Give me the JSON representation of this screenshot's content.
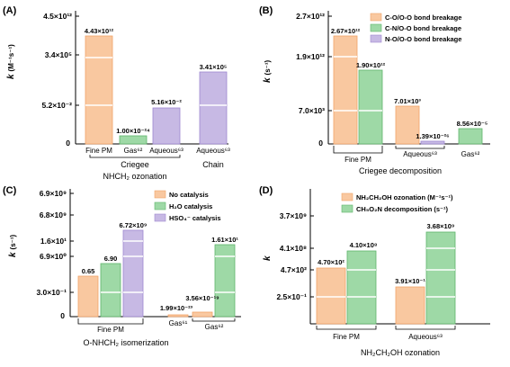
{
  "colors": {
    "orange": "#f9c8a0",
    "orange_stroke": "#f0a368",
    "green": "#9ed9a6",
    "green_stroke": "#5fb56c",
    "purple": "#c7b9e4",
    "purple_stroke": "#9e88cf"
  },
  "chart_data": [
    {
      "panel": "(A)",
      "type": "bar",
      "xlabel": "NHCH2 ozonation",
      "ylabel": "k (M⁻¹s⁻¹)",
      "yscale": "broken",
      "yticks": [
        "0",
        "5.2×10⁻²",
        "3.4×10⁵",
        "4.5×10¹²"
      ],
      "categories": [
        "Fine PM",
        "Gas⁶²",
        "Aqueous⁶³",
        "Aqueous⁶³"
      ],
      "groups": [
        "Criegee",
        "Chain"
      ],
      "series": [
        {
          "category": "Fine PM",
          "group": "Criegee",
          "color": "orange",
          "value_label": "4.43×10¹²",
          "value": 4430000000000.0
        },
        {
          "category": "Gas⁶²",
          "group": "Criegee",
          "color": "green",
          "value_label": "1.00×10⁻²⁴",
          "value": 1e-24
        },
        {
          "category": "Aqueous⁶³",
          "group": "Criegee",
          "color": "purple",
          "value_label": "5.16×10⁻²",
          "value": 0.0516
        },
        {
          "category": "Aqueous⁶³",
          "group": "Chain",
          "color": "purple",
          "value_label": "3.41×10⁵",
          "value": 341000.0
        }
      ]
    },
    {
      "panel": "(B)",
      "type": "bar",
      "xlabel": "Criegee decomposition",
      "ylabel": "k (s⁻¹)",
      "yscale": "broken",
      "yticks": [
        "0",
        "7.0×10³",
        "1.9×10¹²",
        "2.7×10¹²"
      ],
      "categories": [
        "Fine PM",
        "Aqueous⁶³",
        "Gas⁶²"
      ],
      "legend": [
        "C-O/O-O bond breakage",
        "C-N/O-O bond breakage",
        "N-O/O-O bond breakage"
      ],
      "series": [
        {
          "name": "C-O/O-O bond breakage",
          "values": [
            2670000000000.0,
            7010.0,
            null
          ],
          "labels": [
            "2.67×10¹²",
            "7.01×10³",
            ""
          ]
        },
        {
          "name": "C-N/O-O bond breakage",
          "values": [
            1900000000000.0,
            null,
            8.56e-05
          ],
          "labels": [
            "1.90×10¹²",
            "",
            "8.56×10⁻⁵"
          ]
        },
        {
          "name": "N-O/O-O bond breakage",
          "values": [
            null,
            1.39e-26,
            null
          ],
          "labels": [
            "",
            "1.39×10⁻²⁶",
            ""
          ]
        }
      ]
    },
    {
      "panel": "(C)",
      "type": "bar",
      "xlabel": "O-NHCH2 isomerization",
      "ylabel": "k (s⁻¹)",
      "yscale": "broken",
      "yticks": [
        "0",
        "3.0×10⁻¹",
        "6.9×10⁰",
        "1.6×10¹",
        "6.8×10⁹",
        "6.9×10⁹"
      ],
      "categories": [
        "Fine PM",
        "Gas⁶¹",
        "Gas⁶²"
      ],
      "legend": [
        "No catalysis",
        "H₂O catalysis",
        "HSO₄⁻ catalysis"
      ],
      "series": [
        {
          "name": "No catalysis",
          "values": [
            0.65,
            1.99e-23,
            3.56e-19
          ],
          "labels": [
            "0.65",
            "1.99×10⁻²³",
            "3.56×10⁻¹⁹"
          ]
        },
        {
          "name": "H₂O catalysis",
          "values": [
            6.9,
            null,
            16.1
          ],
          "labels": [
            "6.90",
            "",
            "1.61×10¹"
          ]
        },
        {
          "name": "HSO₄⁻ catalysis",
          "values": [
            6720000000.0,
            null,
            null
          ],
          "labels": [
            "6.72×10⁹",
            "",
            ""
          ]
        }
      ]
    },
    {
      "panel": "(D)",
      "type": "bar",
      "xlabel": "NH2CH2OH ozonation",
      "ylabel": "k",
      "yscale": "broken",
      "yticks": [
        "2.5×10⁻¹",
        "4.7×10²",
        "4.1×10⁸",
        "3.7×10⁹"
      ],
      "categories": [
        "Fine PM",
        "Aqueous⁶³"
      ],
      "legend": [
        "NH₂CH₂OH ozonation (M⁻¹s⁻¹)",
        "CH₅O₂N decomposition (s⁻¹)"
      ],
      "series": [
        {
          "name": "NH₂CH₂OH ozonation (M⁻¹s⁻¹)",
          "values": [
            470.0,
            0.391
          ],
          "labels": [
            "4.70×10²",
            "3.91×10⁻¹"
          ]
        },
        {
          "name": "CH₅O₂N decomposition (s⁻¹)",
          "values": [
            410000000.0,
            3680000000.0
          ],
          "labels": [
            "4.10×10⁸",
            "3.68×10⁹"
          ]
        }
      ]
    }
  ],
  "panels": {
    "A": {
      "label": "(A)",
      "ylabel_k": "k",
      "ylabel_unit": "(M⁻¹s⁻¹)",
      "yticks": [
        "4.5×10¹²",
        "3.4×10⁵",
        "5.2×10⁻²",
        "0"
      ],
      "cats": [
        "Fine PM",
        "Gas⁶²",
        "Aqueous⁶³",
        "Aqueous⁶³"
      ],
      "group1": "Criegee",
      "group2": "Chain",
      "xtitle": "NHCH₂ ozonation",
      "vals": [
        "4.43×10¹²",
        "1.00×10⁻²⁴",
        "5.16×10⁻²",
        "3.41×10⁵"
      ]
    },
    "B": {
      "label": "(B)",
      "ylabel_k": "k",
      "ylabel_unit": "(s⁻¹)",
      "yticks": [
        "2.7×10¹²",
        "1.9×10¹²",
        "7.0×10³",
        "0"
      ],
      "cats": [
        "Fine PM",
        "Aqueous⁶³",
        "Gas⁶²"
      ],
      "xtitle": "Criegee decomposition",
      "legend": [
        "C-O/O-O bond breakage",
        "C-N/O-O bond breakage",
        "N-O/O-O bond breakage"
      ],
      "vals": [
        "2.67×10¹²",
        "1.90×10¹²",
        "7.01×10³",
        "1.39×10⁻²⁶",
        "8.56×10⁻⁵"
      ]
    },
    "C": {
      "label": "(C)",
      "ylabel_k": "k",
      "ylabel_unit": "(s⁻¹)",
      "yticks": [
        "6.9×10⁹",
        "6.8×10⁹",
        "1.6×10¹",
        "6.9×10⁰",
        "3.0×10⁻¹",
        "0"
      ],
      "cats": [
        "Fine PM",
        "Gas⁶¹",
        "Gas⁶²"
      ],
      "xtitle": "O-NHCH₂ isomerization",
      "legend": [
        "No catalysis",
        "H₂O catalysis",
        "HSO₄⁻ catalysis"
      ],
      "vals": [
        "0.65",
        "6.90",
        "6.72×10⁹",
        "1.99×10⁻²³",
        "3.56×10⁻¹⁹",
        "1.61×10¹"
      ]
    },
    "D": {
      "label": "(D)",
      "ylabel_k": "k",
      "yticks": [
        "3.7×10⁹",
        "4.1×10⁸",
        "4.7×10²",
        "2.5×10⁻¹"
      ],
      "cats": [
        "Fine PM",
        "Aqueous⁶³"
      ],
      "xtitle": "NH₂CH₂OH ozonation",
      "legend": [
        "NH₂CH₂OH ozonation (M⁻¹s⁻¹)",
        "CH₅O₂N decomposition (s⁻¹)"
      ],
      "vals": [
        "4.70×10²",
        "4.10×10⁸",
        "3.91×10⁻¹",
        "3.68×10⁹"
      ]
    }
  }
}
